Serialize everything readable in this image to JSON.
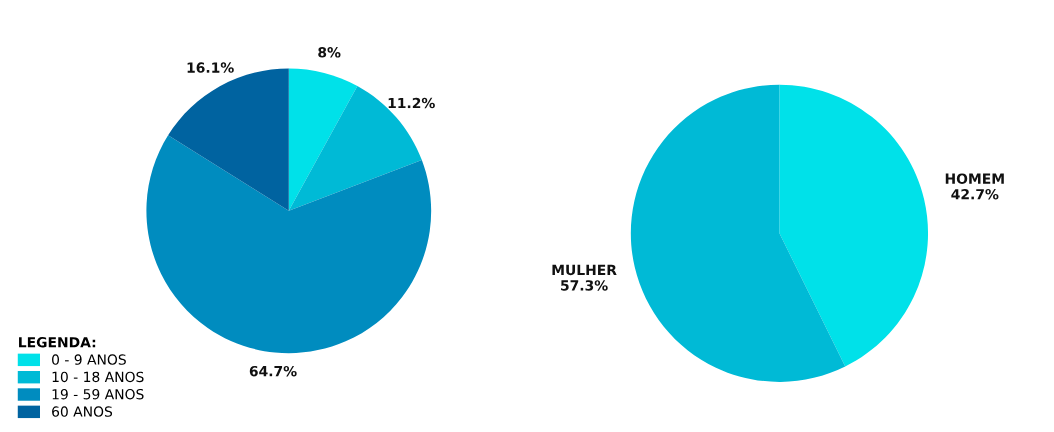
{
  "chart_data": [
    {
      "type": "pie",
      "categories": [
        "0 - 9 ANOS",
        "10 - 18 ANOS",
        "19 - 59 ANOS",
        "60 ANOS"
      ],
      "values": [
        8,
        11.2,
        64.7,
        16.1
      ],
      "colors": [
        "#00e1e9",
        "#00bad6",
        "#008cbf",
        "#0063a0"
      ],
      "value_labels": [
        "8%",
        "11.2%",
        "64.7%",
        "16.1%"
      ],
      "legend": "bottom left",
      "legend_title": "LEGENDA:"
    },
    {
      "type": "pie",
      "categories": [
        "HOMEM",
        "MULHER"
      ],
      "values": [
        42.7,
        57.3
      ],
      "colors": [
        "#00e1e9",
        "#00bad6"
      ],
      "value_labels": [
        "42.7%",
        "57.3%"
      ]
    }
  ]
}
